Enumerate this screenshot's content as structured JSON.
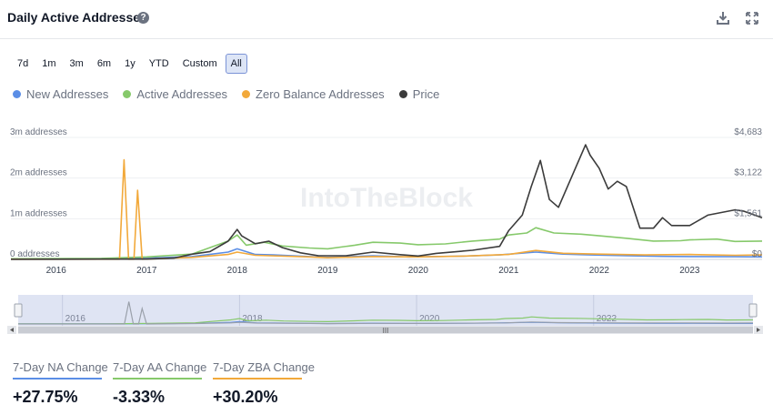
{
  "header": {
    "title": "Daily Active Addresses",
    "help_icon": "help-circle-icon",
    "download_icon": "download-icon",
    "fullscreen_icon": "expand-icon"
  },
  "range_buttons": [
    "7d",
    "1m",
    "3m",
    "6m",
    "1y",
    "YTD",
    "Custom",
    "All"
  ],
  "active_range": "All",
  "colors": {
    "new": "#5b8ee6",
    "active": "#86c96b",
    "zero": "#f2a93b",
    "price": "#3b3b3b"
  },
  "watermark": "IntoTheBlock",
  "navigator": {
    "handle_icon": "grip-icon",
    "center_grip": "III"
  },
  "chart_data": {
    "type": "line",
    "x_ticks": [
      "2016",
      "2017",
      "2018",
      "2019",
      "2020",
      "2021",
      "2022",
      "2023"
    ],
    "navigator_ticks": [
      "2016",
      "2018",
      "2020",
      "2022"
    ],
    "y_left_ticks": [
      "0 addresses",
      "1m addresses",
      "2m addresses",
      "3m addresses"
    ],
    "y_right_ticks": [
      "$0",
      "$1,561",
      "$3,122",
      "$4,683"
    ],
    "ylim_left": [
      0,
      3000000
    ],
    "ylim_right": [
      0,
      4683
    ],
    "xlim": [
      2015.5,
      2023.8
    ],
    "legend_position": "top-left",
    "series": [
      {
        "name": "New Addresses",
        "color_key": "new",
        "axis": "left",
        "points": [
          [
            2015.5,
            10000
          ],
          [
            2016.5,
            15000
          ],
          [
            2017,
            30000
          ],
          [
            2017.5,
            70000
          ],
          [
            2017.9,
            180000
          ],
          [
            2018.0,
            260000
          ],
          [
            2018.2,
            120000
          ],
          [
            2018.4,
            110000
          ],
          [
            2018.8,
            70000
          ],
          [
            2019.0,
            50000
          ],
          [
            2019.5,
            90000
          ],
          [
            2019.9,
            60000
          ],
          [
            2020.5,
            80000
          ],
          [
            2020.9,
            110000
          ],
          [
            2021.3,
            180000
          ],
          [
            2021.6,
            130000
          ],
          [
            2021.9,
            110000
          ],
          [
            2022.3,
            90000
          ],
          [
            2022.7,
            75000
          ],
          [
            2023.0,
            70000
          ],
          [
            2023.5,
            65000
          ],
          [
            2023.8,
            60000
          ]
        ]
      },
      {
        "name": "Active Addresses",
        "color_key": "active",
        "axis": "left",
        "points": [
          [
            2015.5,
            15000
          ],
          [
            2016.5,
            25000
          ],
          [
            2017,
            60000
          ],
          [
            2017.5,
            130000
          ],
          [
            2017.9,
            450000
          ],
          [
            2018.0,
            600000
          ],
          [
            2018.1,
            350000
          ],
          [
            2018.3,
            420000
          ],
          [
            2018.5,
            330000
          ],
          [
            2018.8,
            280000
          ],
          [
            2019.0,
            260000
          ],
          [
            2019.3,
            350000
          ],
          [
            2019.5,
            420000
          ],
          [
            2019.8,
            400000
          ],
          [
            2020.0,
            360000
          ],
          [
            2020.3,
            380000
          ],
          [
            2020.6,
            450000
          ],
          [
            2020.9,
            500000
          ],
          [
            2021.0,
            600000
          ],
          [
            2021.2,
            650000
          ],
          [
            2021.3,
            780000
          ],
          [
            2021.5,
            650000
          ],
          [
            2021.8,
            620000
          ],
          [
            2022.0,
            580000
          ],
          [
            2022.3,
            520000
          ],
          [
            2022.6,
            450000
          ],
          [
            2022.9,
            460000
          ],
          [
            2023.0,
            480000
          ],
          [
            2023.3,
            500000
          ],
          [
            2023.5,
            440000
          ],
          [
            2023.8,
            450000
          ]
        ]
      },
      {
        "name": "Zero Balance Addresses",
        "color_key": "zero",
        "axis": "left",
        "points": [
          [
            2015.5,
            5000
          ],
          [
            2016.7,
            5000
          ],
          [
            2016.75,
            2450000
          ],
          [
            2016.8,
            5000
          ],
          [
            2016.86,
            5000
          ],
          [
            2016.9,
            1700000
          ],
          [
            2016.95,
            5000
          ],
          [
            2017.5,
            50000
          ],
          [
            2017.9,
            120000
          ],
          [
            2018.0,
            180000
          ],
          [
            2018.2,
            100000
          ],
          [
            2018.8,
            60000
          ],
          [
            2019.0,
            40000
          ],
          [
            2019.5,
            70000
          ],
          [
            2020.0,
            60000
          ],
          [
            2020.5,
            80000
          ],
          [
            2021.0,
            120000
          ],
          [
            2021.3,
            220000
          ],
          [
            2021.6,
            150000
          ],
          [
            2022.0,
            130000
          ],
          [
            2022.5,
            110000
          ],
          [
            2023.0,
            120000
          ],
          [
            2023.5,
            100000
          ],
          [
            2023.8,
            110000
          ]
        ]
      },
      {
        "name": "Price",
        "color_key": "price",
        "axis": "right",
        "points": [
          [
            2015.5,
            5
          ],
          [
            2016.5,
            10
          ],
          [
            2017.0,
            12
          ],
          [
            2017.3,
            50
          ],
          [
            2017.5,
            200
          ],
          [
            2017.7,
            300
          ],
          [
            2017.9,
            700
          ],
          [
            2018.0,
            1150
          ],
          [
            2018.05,
            900
          ],
          [
            2018.2,
            600
          ],
          [
            2018.35,
            700
          ],
          [
            2018.5,
            450
          ],
          [
            2018.7,
            250
          ],
          [
            2018.9,
            140
          ],
          [
            2019.2,
            140
          ],
          [
            2019.5,
            280
          ],
          [
            2019.8,
            180
          ],
          [
            2020.0,
            130
          ],
          [
            2020.2,
            230
          ],
          [
            2020.6,
            350
          ],
          [
            2020.9,
            500
          ],
          [
            2021.0,
            1100
          ],
          [
            2021.15,
            1700
          ],
          [
            2021.25,
            2800
          ],
          [
            2021.35,
            3800
          ],
          [
            2021.45,
            2300
          ],
          [
            2021.55,
            2000
          ],
          [
            2021.7,
            3200
          ],
          [
            2021.85,
            4400
          ],
          [
            2021.9,
            4000
          ],
          [
            2022.0,
            3500
          ],
          [
            2022.1,
            2700
          ],
          [
            2022.2,
            3000
          ],
          [
            2022.3,
            2800
          ],
          [
            2022.45,
            1200
          ],
          [
            2022.6,
            1200
          ],
          [
            2022.7,
            1600
          ],
          [
            2022.8,
            1300
          ],
          [
            2023.0,
            1300
          ],
          [
            2023.2,
            1700
          ],
          [
            2023.35,
            1800
          ],
          [
            2023.5,
            1900
          ],
          [
            2023.6,
            1850
          ],
          [
            2023.8,
            1600
          ]
        ]
      }
    ]
  },
  "stats": [
    {
      "label": "7-Day NA Change",
      "value": "+27.75%",
      "color_key": "new"
    },
    {
      "label": "7-Day AA Change",
      "value": "-3.33%",
      "color_key": "active"
    },
    {
      "label": "7-Day ZBA Change",
      "value": "+30.20%",
      "color_key": "zero"
    }
  ]
}
